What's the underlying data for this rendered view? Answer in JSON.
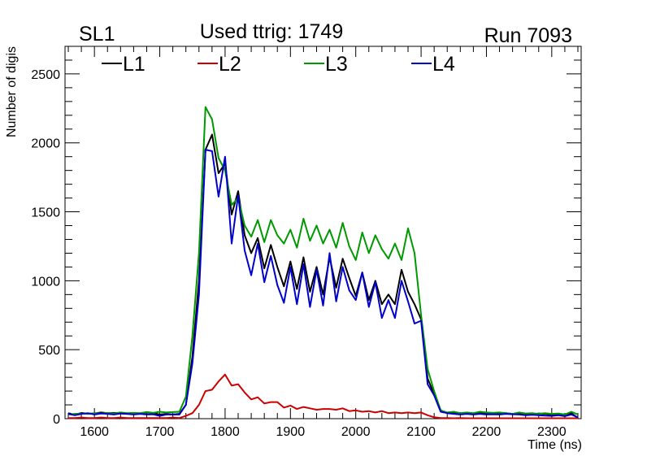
{
  "chart_data": {
    "type": "line",
    "title": "Used ttrig: 1749",
    "left_label": "SL1",
    "right_label": "Run 7093",
    "xlabel": "Time (ns)",
    "ylabel": "Number of digis",
    "xlim": [
      1555,
      2345
    ],
    "ylim": [
      0,
      2700
    ],
    "x_ticks": [
      1600,
      1700,
      1800,
      1900,
      2000,
      2100,
      2200,
      2300
    ],
    "y_ticks": [
      0,
      500,
      1000,
      1500,
      2000,
      2500
    ],
    "legend_position": "top",
    "grid": false,
    "series": [
      {
        "name": "L1",
        "color": "#000000",
        "points": [
          [
            1560,
            40
          ],
          [
            1570,
            28
          ],
          [
            1580,
            42
          ],
          [
            1590,
            35
          ],
          [
            1600,
            38
          ],
          [
            1610,
            45
          ],
          [
            1620,
            40
          ],
          [
            1630,
            42
          ],
          [
            1640,
            38
          ],
          [
            1650,
            35
          ],
          [
            1660,
            40
          ],
          [
            1670,
            38
          ],
          [
            1680,
            45
          ],
          [
            1690,
            40
          ],
          [
            1700,
            30
          ],
          [
            1710,
            35
          ],
          [
            1720,
            30
          ],
          [
            1730,
            35
          ],
          [
            1740,
            100
          ],
          [
            1750,
            450
          ],
          [
            1760,
            1000
          ],
          [
            1770,
            1950
          ],
          [
            1780,
            2060
          ],
          [
            1790,
            1780
          ],
          [
            1800,
            1850
          ],
          [
            1810,
            1480
          ],
          [
            1820,
            1650
          ],
          [
            1830,
            1330
          ],
          [
            1840,
            1200
          ],
          [
            1850,
            1310
          ],
          [
            1860,
            1090
          ],
          [
            1870,
            1260
          ],
          [
            1880,
            1100
          ],
          [
            1890,
            960
          ],
          [
            1900,
            1140
          ],
          [
            1910,
            940
          ],
          [
            1920,
            1170
          ],
          [
            1930,
            920
          ],
          [
            1940,
            1100
          ],
          [
            1950,
            900
          ],
          [
            1960,
            1170
          ],
          [
            1970,
            950
          ],
          [
            1980,
            1160
          ],
          [
            1990,
            1020
          ],
          [
            2000,
            890
          ],
          [
            2010,
            1060
          ],
          [
            2020,
            860
          ],
          [
            2030,
            1000
          ],
          [
            2040,
            830
          ],
          [
            2050,
            900
          ],
          [
            2060,
            830
          ],
          [
            2070,
            1080
          ],
          [
            2080,
            920
          ],
          [
            2090,
            830
          ],
          [
            2100,
            720
          ],
          [
            2110,
            290
          ],
          [
            2120,
            180
          ],
          [
            2130,
            60
          ],
          [
            2140,
            40
          ],
          [
            2150,
            45
          ],
          [
            2160,
            40
          ],
          [
            2170,
            35
          ],
          [
            2180,
            38
          ],
          [
            2190,
            40
          ],
          [
            2200,
            35
          ],
          [
            2210,
            38
          ],
          [
            2220,
            35
          ],
          [
            2230,
            40
          ],
          [
            2240,
            35
          ],
          [
            2250,
            38
          ],
          [
            2260,
            35
          ],
          [
            2270,
            30
          ],
          [
            2280,
            38
          ],
          [
            2290,
            35
          ],
          [
            2300,
            30
          ],
          [
            2310,
            35
          ],
          [
            2320,
            30
          ],
          [
            2330,
            40
          ],
          [
            2340,
            5
          ]
        ]
      },
      {
        "name": "L2",
        "color": "#cc0000",
        "points": [
          [
            1560,
            5
          ],
          [
            1570,
            5
          ],
          [
            1580,
            8
          ],
          [
            1590,
            5
          ],
          [
            1600,
            5
          ],
          [
            1610,
            8
          ],
          [
            1620,
            5
          ],
          [
            1630,
            5
          ],
          [
            1640,
            8
          ],
          [
            1650,
            5
          ],
          [
            1660,
            5
          ],
          [
            1670,
            5
          ],
          [
            1680,
            5
          ],
          [
            1690,
            5
          ],
          [
            1700,
            5
          ],
          [
            1710,
            5
          ],
          [
            1720,
            8
          ],
          [
            1730,
            5
          ],
          [
            1740,
            20
          ],
          [
            1750,
            40
          ],
          [
            1760,
            100
          ],
          [
            1770,
            200
          ],
          [
            1780,
            210
          ],
          [
            1790,
            270
          ],
          [
            1800,
            320
          ],
          [
            1810,
            240
          ],
          [
            1820,
            250
          ],
          [
            1830,
            190
          ],
          [
            1840,
            140
          ],
          [
            1850,
            155
          ],
          [
            1860,
            110
          ],
          [
            1870,
            120
          ],
          [
            1880,
            120
          ],
          [
            1890,
            80
          ],
          [
            1900,
            95
          ],
          [
            1910,
            70
          ],
          [
            1920,
            85
          ],
          [
            1930,
            75
          ],
          [
            1940,
            65
          ],
          [
            1950,
            70
          ],
          [
            1960,
            70
          ],
          [
            1970,
            65
          ],
          [
            1980,
            75
          ],
          [
            1990,
            55
          ],
          [
            2000,
            60
          ],
          [
            2010,
            50
          ],
          [
            2020,
            55
          ],
          [
            2030,
            45
          ],
          [
            2040,
            55
          ],
          [
            2050,
            40
          ],
          [
            2060,
            45
          ],
          [
            2070,
            40
          ],
          [
            2080,
            45
          ],
          [
            2090,
            40
          ],
          [
            2100,
            45
          ],
          [
            2110,
            25
          ],
          [
            2120,
            10
          ],
          [
            2130,
            5
          ],
          [
            2140,
            5
          ],
          [
            2150,
            3
          ],
          [
            2160,
            5
          ],
          [
            2170,
            3
          ],
          [
            2180,
            3
          ],
          [
            2190,
            3
          ],
          [
            2200,
            3
          ],
          [
            2210,
            3
          ],
          [
            2220,
            3
          ],
          [
            2230,
            3
          ],
          [
            2240,
            3
          ],
          [
            2250,
            3
          ],
          [
            2260,
            3
          ],
          [
            2270,
            3
          ],
          [
            2280,
            3
          ],
          [
            2290,
            3
          ],
          [
            2300,
            3
          ],
          [
            2310,
            3
          ],
          [
            2320,
            3
          ],
          [
            2330,
            3
          ],
          [
            2340,
            3
          ]
        ]
      },
      {
        "name": "L3",
        "color": "#009900",
        "points": [
          [
            1560,
            30
          ],
          [
            1570,
            35
          ],
          [
            1580,
            38
          ],
          [
            1590,
            35
          ],
          [
            1600,
            40
          ],
          [
            1610,
            38
          ],
          [
            1620,
            42
          ],
          [
            1630,
            38
          ],
          [
            1640,
            45
          ],
          [
            1650,
            40
          ],
          [
            1660,
            42
          ],
          [
            1670,
            40
          ],
          [
            1680,
            48
          ],
          [
            1690,
            42
          ],
          [
            1700,
            50
          ],
          [
            1710,
            45
          ],
          [
            1720,
            48
          ],
          [
            1730,
            50
          ],
          [
            1740,
            160
          ],
          [
            1750,
            600
          ],
          [
            1760,
            1200
          ],
          [
            1770,
            2260
          ],
          [
            1780,
            2170
          ],
          [
            1790,
            1890
          ],
          [
            1800,
            1800
          ],
          [
            1810,
            1550
          ],
          [
            1820,
            1600
          ],
          [
            1830,
            1400
          ],
          [
            1840,
            1320
          ],
          [
            1850,
            1440
          ],
          [
            1860,
            1280
          ],
          [
            1870,
            1440
          ],
          [
            1880,
            1330
          ],
          [
            1890,
            1270
          ],
          [
            1900,
            1370
          ],
          [
            1910,
            1240
          ],
          [
            1920,
            1450
          ],
          [
            1930,
            1290
          ],
          [
            1940,
            1400
          ],
          [
            1950,
            1270
          ],
          [
            1960,
            1370
          ],
          [
            1970,
            1240
          ],
          [
            1980,
            1420
          ],
          [
            1990,
            1250
          ],
          [
            2000,
            1150
          ],
          [
            2010,
            1350
          ],
          [
            2020,
            1200
          ],
          [
            2030,
            1330
          ],
          [
            2040,
            1230
          ],
          [
            2050,
            1160
          ],
          [
            2060,
            1270
          ],
          [
            2070,
            1150
          ],
          [
            2080,
            1380
          ],
          [
            2090,
            1200
          ],
          [
            2100,
            750
          ],
          [
            2110,
            360
          ],
          [
            2120,
            200
          ],
          [
            2130,
            60
          ],
          [
            2140,
            45
          ],
          [
            2150,
            50
          ],
          [
            2160,
            40
          ],
          [
            2170,
            45
          ],
          [
            2180,
            40
          ],
          [
            2190,
            50
          ],
          [
            2200,
            45
          ],
          [
            2210,
            42
          ],
          [
            2220,
            45
          ],
          [
            2230,
            40
          ],
          [
            2240,
            35
          ],
          [
            2250,
            45
          ],
          [
            2260,
            38
          ],
          [
            2270,
            40
          ],
          [
            2280,
            35
          ],
          [
            2290,
            40
          ],
          [
            2300,
            35
          ],
          [
            2310,
            38
          ],
          [
            2320,
            30
          ],
          [
            2330,
            50
          ],
          [
            2340,
            30
          ]
        ]
      },
      {
        "name": "L4",
        "color": "#0000cc",
        "points": [
          [
            1560,
            35
          ],
          [
            1570,
            25
          ],
          [
            1580,
            35
          ],
          [
            1590,
            40
          ],
          [
            1600,
            30
          ],
          [
            1610,
            38
          ],
          [
            1620,
            35
          ],
          [
            1630,
            30
          ],
          [
            1640,
            38
          ],
          [
            1650,
            35
          ],
          [
            1660,
            30
          ],
          [
            1670,
            35
          ],
          [
            1680,
            30
          ],
          [
            1690,
            32
          ],
          [
            1700,
            20
          ],
          [
            1710,
            30
          ],
          [
            1720,
            30
          ],
          [
            1730,
            30
          ],
          [
            1740,
            100
          ],
          [
            1750,
            400
          ],
          [
            1760,
            900
          ],
          [
            1770,
            1950
          ],
          [
            1780,
            1940
          ],
          [
            1790,
            1610
          ],
          [
            1800,
            1900
          ],
          [
            1810,
            1270
          ],
          [
            1820,
            1620
          ],
          [
            1830,
            1220
          ],
          [
            1840,
            1040
          ],
          [
            1850,
            1270
          ],
          [
            1860,
            990
          ],
          [
            1870,
            1180
          ],
          [
            1880,
            970
          ],
          [
            1890,
            840
          ],
          [
            1900,
            1100
          ],
          [
            1910,
            830
          ],
          [
            1920,
            1120
          ],
          [
            1930,
            810
          ],
          [
            1940,
            1080
          ],
          [
            1950,
            820
          ],
          [
            1960,
            1200
          ],
          [
            1970,
            850
          ],
          [
            1980,
            1100
          ],
          [
            1990,
            930
          ],
          [
            2000,
            860
          ],
          [
            2010,
            1060
          ],
          [
            2020,
            810
          ],
          [
            2030,
            990
          ],
          [
            2040,
            730
          ],
          [
            2050,
            860
          ],
          [
            2060,
            730
          ],
          [
            2070,
            1000
          ],
          [
            2080,
            850
          ],
          [
            2090,
            690
          ],
          [
            2100,
            710
          ],
          [
            2110,
            250
          ],
          [
            2120,
            170
          ],
          [
            2130,
            50
          ],
          [
            2140,
            40
          ],
          [
            2150,
            35
          ],
          [
            2160,
            30
          ],
          [
            2170,
            35
          ],
          [
            2180,
            30
          ],
          [
            2190,
            35
          ],
          [
            2200,
            30
          ],
          [
            2210,
            32
          ],
          [
            2220,
            30
          ],
          [
            2230,
            35
          ],
          [
            2240,
            32
          ],
          [
            2250,
            30
          ],
          [
            2260,
            25
          ],
          [
            2270,
            28
          ],
          [
            2280,
            25
          ],
          [
            2290,
            22
          ],
          [
            2300,
            20
          ],
          [
            2310,
            25
          ],
          [
            2320,
            18
          ],
          [
            2330,
            30
          ],
          [
            2340,
            10
          ]
        ]
      }
    ]
  }
}
